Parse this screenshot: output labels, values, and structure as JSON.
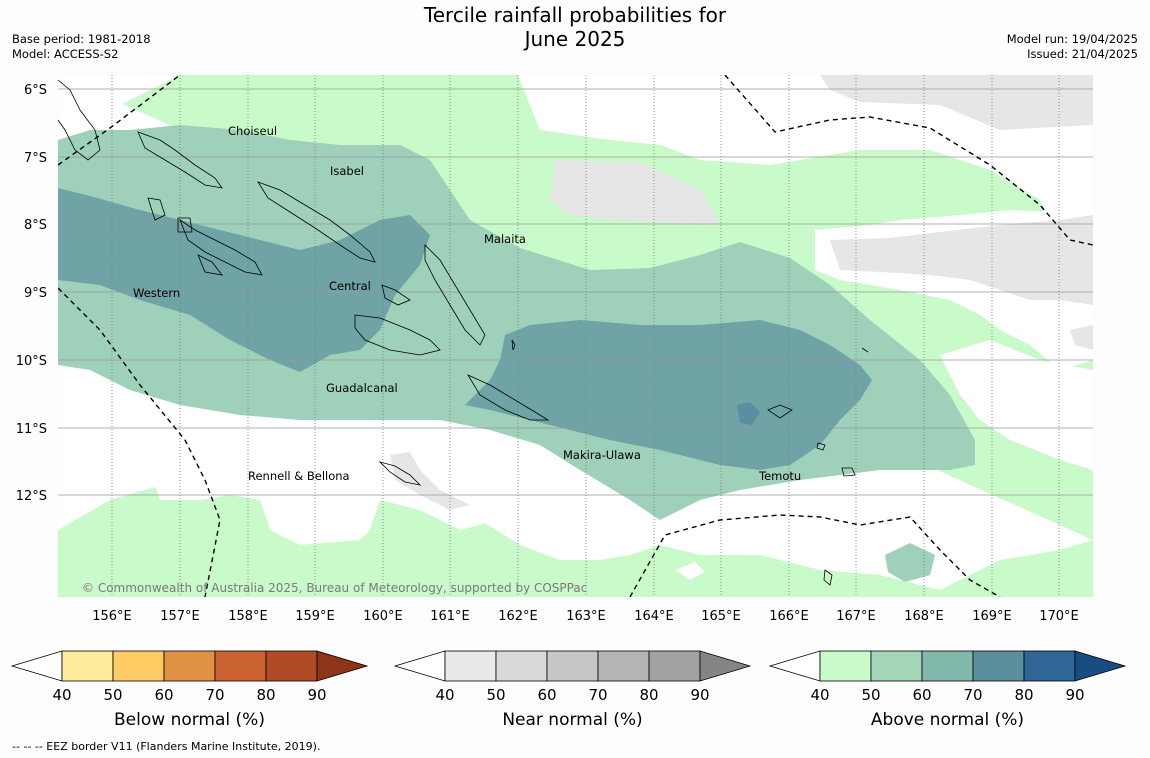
{
  "title": {
    "line1": "Tercile rainfall probabilities for",
    "line2": "June 2025"
  },
  "meta_left": {
    "base_period": "Base period: 1981-2018",
    "model": "Model: ACCESS-S2"
  },
  "meta_right": {
    "model_run": "Model run: 19/04/2025",
    "issued": "Issued: 21/04/2025"
  },
  "map": {
    "lat_labels": [
      "6°S",
      "7°S",
      "8°S",
      "9°S",
      "10°S",
      "11°S",
      "12°S"
    ],
    "lon_labels": [
      "156°E",
      "157°E",
      "158°E",
      "159°E",
      "160°E",
      "161°E",
      "162°E",
      "163°E",
      "164°E",
      "165°E",
      "166°E",
      "167°E",
      "168°E",
      "169°E",
      "170°E"
    ],
    "regions": [
      "Choiseul",
      "Isabel",
      "Malaita",
      "Western",
      "Central",
      "Guadalcanal",
      "Makira-Ulawa",
      "Temotu",
      "Rennell & Bellona"
    ],
    "copyright": "© Commonwealth of Australia 2025, Bureau of Meteorology, supported by COSPPac"
  },
  "colorbars": [
    {
      "caption": "Below normal (%)",
      "ticks": [
        "40",
        "50",
        "60",
        "70",
        "80",
        "90"
      ],
      "colors": [
        "#ffffff",
        "#ffeb9c",
        "#fdca63",
        "#e09144",
        "#cc6232",
        "#b04b28",
        "#8f3418"
      ]
    },
    {
      "caption": "Near normal (%)",
      "ticks": [
        "40",
        "50",
        "60",
        "70",
        "80",
        "90"
      ],
      "colors": [
        "#ffffff",
        "#e9e9e9",
        "#d9d9d9",
        "#c7c7c7",
        "#b5b5b5",
        "#a2a2a2",
        "#858585"
      ]
    },
    {
      "caption": "Above normal (%)",
      "ticks": [
        "40",
        "50",
        "60",
        "70",
        "80",
        "90"
      ],
      "colors": [
        "#ffffff",
        "#c9fac9",
        "#a4d6b8",
        "#82b8ac",
        "#5b8f9b",
        "#2f6696",
        "#194c80"
      ]
    }
  ],
  "footer_note": "--  --  -- EEZ border V11 (Flanders Marine Institute, 2019).",
  "palette": {
    "above_50": "#c9fac9",
    "above_60": "#9fd0b9",
    "above_70": "#6fa3a6",
    "above_80": "#5a8fa0",
    "near_50": "#e6e6e6"
  }
}
